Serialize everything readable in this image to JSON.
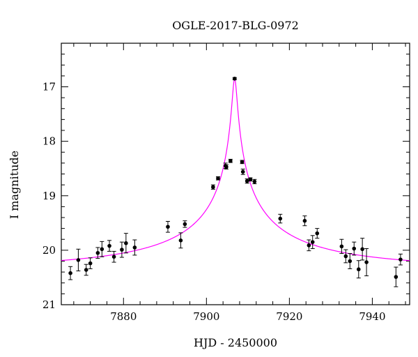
{
  "chart_data": {
    "type": "scatter",
    "title": "OGLE-2017-BLG-0972",
    "xlabel": "HJD - 2450000",
    "ylabel": "I magnitude",
    "xlim": [
      7865,
      7949
    ],
    "ylim": [
      21,
      16.2
    ],
    "y_inverted": true,
    "xticks": [
      7880,
      7900,
      7920,
      7940
    ],
    "yticks": [
      17,
      18,
      19,
      20,
      21
    ],
    "grid": false,
    "colors": {
      "points": "#000000",
      "model": "#ff00ff",
      "axes": "#000000"
    },
    "series": [
      {
        "kind": "points_with_errorbars",
        "points": [
          {
            "x": 7867.2,
            "y": 20.42,
            "err": 0.12
          },
          {
            "x": 7869.1,
            "y": 20.18,
            "err": 0.2
          },
          {
            "x": 7871.0,
            "y": 20.36,
            "err": 0.1
          },
          {
            "x": 7872.0,
            "y": 20.24,
            "err": 0.1
          },
          {
            "x": 7873.8,
            "y": 20.05,
            "err": 0.1
          },
          {
            "x": 7874.8,
            "y": 19.98,
            "err": 0.14
          },
          {
            "x": 7876.6,
            "y": 19.92,
            "err": 0.1
          },
          {
            "x": 7877.7,
            "y": 20.12,
            "err": 0.1
          },
          {
            "x": 7879.6,
            "y": 19.99,
            "err": 0.14
          },
          {
            "x": 7880.6,
            "y": 19.87,
            "err": 0.18
          },
          {
            "x": 7882.7,
            "y": 19.95,
            "err": 0.14
          },
          {
            "x": 7890.7,
            "y": 19.57,
            "err": 0.1
          },
          {
            "x": 7893.8,
            "y": 19.82,
            "err": 0.14
          },
          {
            "x": 7894.8,
            "y": 19.52,
            "err": 0.06
          },
          {
            "x": 7901.6,
            "y": 18.84,
            "err": 0.04
          },
          {
            "x": 7902.8,
            "y": 18.68,
            "err": 0.03
          },
          {
            "x": 7904.6,
            "y": 18.45,
            "err": 0.05
          },
          {
            "x": 7904.8,
            "y": 18.47,
            "err": 0.04
          },
          {
            "x": 7905.8,
            "y": 18.36,
            "err": 0.03
          },
          {
            "x": 7906.8,
            "y": 16.85,
            "err": 0.02
          },
          {
            "x": 7908.6,
            "y": 18.38,
            "err": 0.03
          },
          {
            "x": 7908.8,
            "y": 18.56,
            "err": 0.05
          },
          {
            "x": 7909.8,
            "y": 18.73,
            "err": 0.04
          },
          {
            "x": 7910.6,
            "y": 18.7,
            "err": 0.03
          },
          {
            "x": 7911.6,
            "y": 18.74,
            "err": 0.04
          },
          {
            "x": 7917.8,
            "y": 19.42,
            "err": 0.08
          },
          {
            "x": 7923.7,
            "y": 19.46,
            "err": 0.09
          },
          {
            "x": 7924.7,
            "y": 19.91,
            "err": 0.1
          },
          {
            "x": 7925.6,
            "y": 19.85,
            "err": 0.12
          },
          {
            "x": 7926.7,
            "y": 19.69,
            "err": 0.09
          },
          {
            "x": 7932.6,
            "y": 19.93,
            "err": 0.13
          },
          {
            "x": 7933.6,
            "y": 20.11,
            "err": 0.12
          },
          {
            "x": 7934.6,
            "y": 20.2,
            "err": 0.14
          },
          {
            "x": 7935.6,
            "y": 19.97,
            "err": 0.12
          },
          {
            "x": 7936.7,
            "y": 20.35,
            "err": 0.16
          },
          {
            "x": 7937.6,
            "y": 19.98,
            "err": 0.2
          },
          {
            "x": 7938.6,
            "y": 20.22,
            "err": 0.25
          },
          {
            "x": 7945.7,
            "y": 20.49,
            "err": 0.18
          },
          {
            "x": 7946.8,
            "y": 20.17,
            "err": 0.1
          }
        ]
      },
      {
        "kind": "model_curve",
        "t0": 7906.8,
        "peak": 16.85,
        "baseline": 20.33
      }
    ]
  }
}
